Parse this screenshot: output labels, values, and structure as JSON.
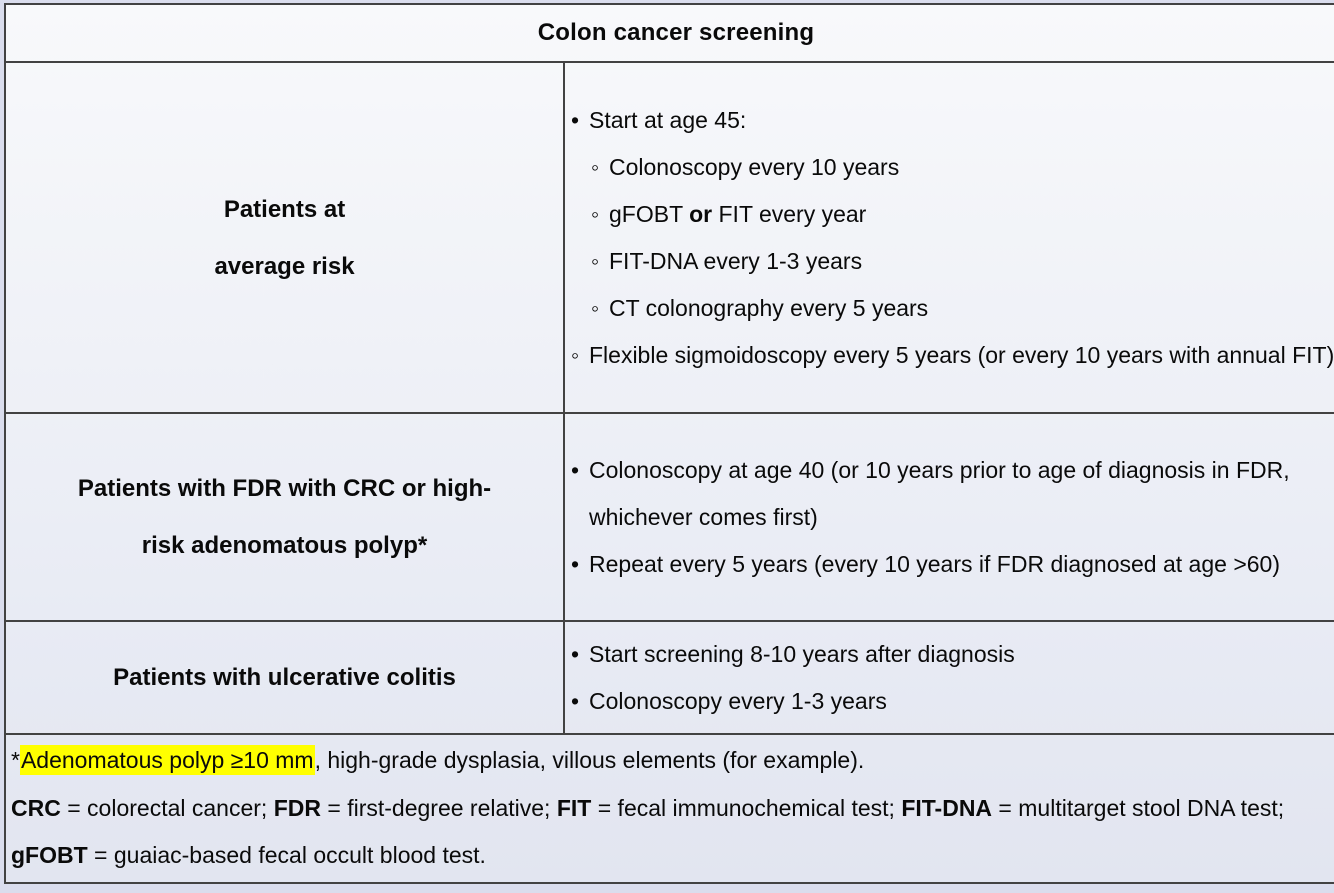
{
  "title": "Colon cancer screening",
  "markers": {
    "disc": "•",
    "circle": "◦"
  },
  "colors": {
    "page_background": "#dadded",
    "table_background_top": "#f8f9fb",
    "table_background_bottom": "#e2e5f0",
    "border": "#424242",
    "text": "#0a0a0a",
    "highlight": "#ffff00"
  },
  "rows": [
    {
      "label": "Patients at average risk",
      "label_lines": [
        "Patients at",
        "average risk"
      ],
      "items": [
        {
          "level": 1,
          "marker": "disc",
          "parts": [
            {
              "t": "Start at age 45:"
            }
          ]
        },
        {
          "level": 2,
          "marker": "circle",
          "parts": [
            {
              "t": "Colonoscopy every 10 years"
            }
          ]
        },
        {
          "level": 2,
          "marker": "circle",
          "parts": [
            {
              "t": "gFOBT "
            },
            {
              "t": "or",
              "b": true
            },
            {
              "t": " FIT every year"
            }
          ]
        },
        {
          "level": 2,
          "marker": "circle",
          "parts": [
            {
              "t": "FIT-DNA every 1-3 years"
            }
          ]
        },
        {
          "level": 2,
          "marker": "circle",
          "parts": [
            {
              "t": "CT colonography every 5 years"
            }
          ]
        },
        {
          "level": 1,
          "marker": "circle",
          "parts": [
            {
              "t": "Flexible sigmoidoscopy every 5 years (or every 10 years with annual FIT)"
            }
          ]
        }
      ]
    },
    {
      "label": "Patients with FDR with CRC or high-risk adenomatous polyp*",
      "label_lines": [
        "Patients with FDR with CRC or high-",
        "risk adenomatous polyp*"
      ],
      "items": [
        {
          "level": 1,
          "marker": "disc",
          "parts": [
            {
              "t": "Colonoscopy at age 40 (or 10 years prior to age of diagnosis in FDR, whichever comes first)"
            }
          ]
        },
        {
          "level": 1,
          "marker": "disc",
          "parts": [
            {
              "t": "Repeat every 5 years (every 10 years if FDR diagnosed at age >60)"
            }
          ]
        }
      ]
    },
    {
      "label": "Patients with ulcerative colitis",
      "label_lines": [
        "Patients with ulcerative colitis"
      ],
      "items": [
        {
          "level": 1,
          "marker": "disc",
          "parts": [
            {
              "t": "Start screening 8-10 years after diagnosis"
            }
          ]
        },
        {
          "level": 1,
          "marker": "disc",
          "parts": [
            {
              "t": "Colonoscopy every 1-3 years"
            }
          ]
        }
      ]
    }
  ],
  "footnotes": [
    {
      "parts": [
        {
          "t": "*"
        },
        {
          "t": "Adenomatous polyp ≥10 mm",
          "h": true
        },
        {
          "t": ", high-grade dysplasia, villous elements (for example)."
        }
      ]
    },
    {
      "parts": [
        {
          "t": "CRC",
          "b": true
        },
        {
          "t": " = colorectal cancer; "
        },
        {
          "t": "FDR",
          "b": true
        },
        {
          "t": " = first-degree relative; "
        },
        {
          "t": "FIT",
          "b": true
        },
        {
          "t": " = fecal immunochemical test; "
        },
        {
          "t": "FIT-DNA",
          "b": true
        },
        {
          "t": " = multitarget stool DNA test; "
        },
        {
          "t": "gFOBT",
          "b": true
        },
        {
          "t": " = guaiac-based fecal occult blood test."
        }
      ]
    }
  ]
}
